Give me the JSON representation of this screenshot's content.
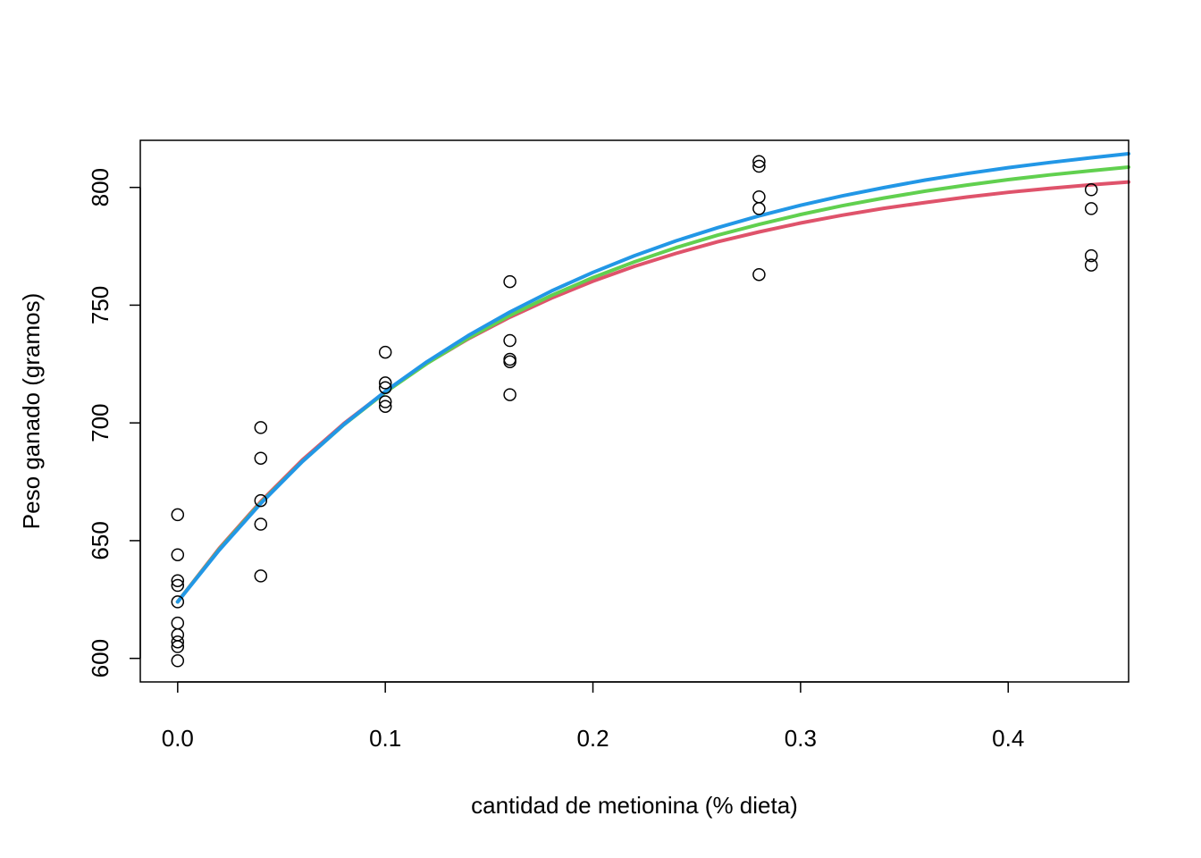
{
  "chart_data": {
    "type": "scatter",
    "title": "",
    "xlabel": "cantidad de metionina (% dieta)",
    "ylabel": "Peso ganado (gramos)",
    "xlim": [
      -0.018,
      0.458
    ],
    "ylim": [
      590,
      820
    ],
    "x_ticks": [
      0.0,
      0.1,
      0.2,
      0.3,
      0.4
    ],
    "x_tick_labels": [
      "0.0",
      "0.1",
      "0.2",
      "0.3",
      "0.4"
    ],
    "y_ticks": [
      600,
      650,
      700,
      750,
      800
    ],
    "y_tick_labels": [
      "600",
      "650",
      "700",
      "750",
      "800"
    ],
    "grid": false,
    "points": [
      {
        "x": 0.0,
        "y": 661
      },
      {
        "x": 0.0,
        "y": 644
      },
      {
        "x": 0.0,
        "y": 633
      },
      {
        "x": 0.0,
        "y": 631
      },
      {
        "x": 0.0,
        "y": 624
      },
      {
        "x": 0.0,
        "y": 615
      },
      {
        "x": 0.0,
        "y": 610
      },
      {
        "x": 0.0,
        "y": 607
      },
      {
        "x": 0.0,
        "y": 605
      },
      {
        "x": 0.0,
        "y": 599
      },
      {
        "x": 0.04,
        "y": 698
      },
      {
        "x": 0.04,
        "y": 685
      },
      {
        "x": 0.04,
        "y": 667
      },
      {
        "x": 0.04,
        "y": 657
      },
      {
        "x": 0.04,
        "y": 635
      },
      {
        "x": 0.1,
        "y": 730
      },
      {
        "x": 0.1,
        "y": 717
      },
      {
        "x": 0.1,
        "y": 715
      },
      {
        "x": 0.1,
        "y": 709
      },
      {
        "x": 0.1,
        "y": 707
      },
      {
        "x": 0.16,
        "y": 760
      },
      {
        "x": 0.16,
        "y": 735
      },
      {
        "x": 0.16,
        "y": 727
      },
      {
        "x": 0.16,
        "y": 726
      },
      {
        "x": 0.16,
        "y": 712
      },
      {
        "x": 0.28,
        "y": 811
      },
      {
        "x": 0.28,
        "y": 809
      },
      {
        "x": 0.28,
        "y": 796
      },
      {
        "x": 0.28,
        "y": 791
      },
      {
        "x": 0.28,
        "y": 763
      },
      {
        "x": 0.44,
        "y": 799
      },
      {
        "x": 0.44,
        "y": 791
      },
      {
        "x": 0.44,
        "y": 771
      },
      {
        "x": 0.44,
        "y": 767
      }
    ],
    "series": [
      {
        "color": "#DF536B",
        "x": [
          0.0,
          0.02,
          0.04,
          0.06,
          0.08,
          0.1,
          0.12,
          0.14,
          0.16,
          0.18,
          0.2,
          0.22,
          0.24,
          0.26,
          0.28,
          0.3,
          0.32,
          0.34,
          0.36,
          0.38,
          0.4,
          0.42,
          0.44,
          0.458
        ],
        "y": [
          624.0,
          646.7,
          666.6,
          684.2,
          699.7,
          713.2,
          725.3,
          735.7,
          744.9,
          753.0,
          760.2,
          766.5,
          772.0,
          776.9,
          781.1,
          784.9,
          788.2,
          791.1,
          793.6,
          795.9,
          797.9,
          799.6,
          801.1,
          802.3
        ]
      },
      {
        "color": "#61D04F",
        "x": [
          0.0,
          0.02,
          0.04,
          0.06,
          0.08,
          0.1,
          0.12,
          0.14,
          0.16,
          0.18,
          0.2,
          0.22,
          0.24,
          0.26,
          0.28,
          0.3,
          0.32,
          0.34,
          0.36,
          0.38,
          0.4,
          0.42,
          0.44,
          0.458
        ],
        "y": [
          624.0,
          646.3,
          666.1,
          683.6,
          699.2,
          713.0,
          725.2,
          736.0,
          745.6,
          754.1,
          761.7,
          768.4,
          774.4,
          779.7,
          784.3,
          788.5,
          792.2,
          795.5,
          798.4,
          801.0,
          803.3,
          805.3,
          807.1,
          808.6
        ]
      },
      {
        "color": "#2297E6",
        "x": [
          0.0,
          0.02,
          0.04,
          0.06,
          0.08,
          0.1,
          0.12,
          0.14,
          0.16,
          0.18,
          0.2,
          0.22,
          0.24,
          0.26,
          0.28,
          0.3,
          0.32,
          0.34,
          0.36,
          0.38,
          0.4,
          0.42,
          0.44,
          0.458
        ],
        "y": [
          624.0,
          646.0,
          665.8,
          683.5,
          699.3,
          713.4,
          725.9,
          737.1,
          747.1,
          756.0,
          763.9,
          771.0,
          777.3,
          782.9,
          787.9,
          792.4,
          796.4,
          799.9,
          803.1,
          805.9,
          808.4,
          810.6,
          812.6,
          814.3
        ]
      }
    ]
  }
}
